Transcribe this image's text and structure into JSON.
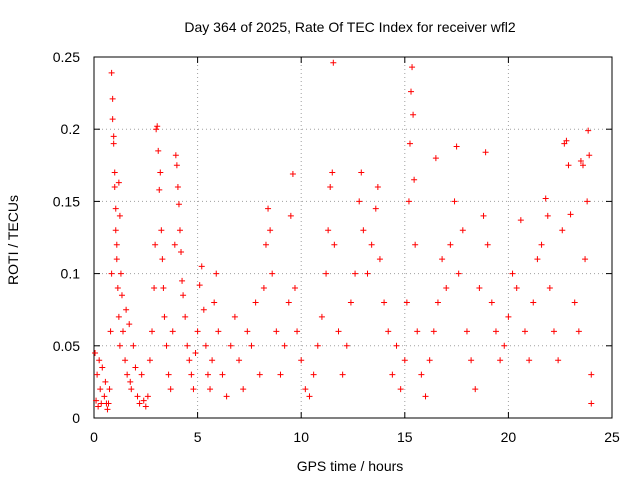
{
  "chart_data": {
    "type": "scatter",
    "title": "Day 364 of 2025, Rate Of TEC Index for receiver wfl2",
    "xlabel": "GPS time / hours",
    "ylabel": "ROTI / TECUs",
    "xlim": [
      0,
      25
    ],
    "ylim": [
      0,
      0.25
    ],
    "xticks": [
      0,
      5,
      10,
      15,
      20,
      25
    ],
    "xtick_labels": [
      "0",
      "5",
      "10",
      "15",
      "20",
      "25"
    ],
    "yticks": [
      0,
      0.05,
      0.1,
      0.15,
      0.2,
      0.25
    ],
    "ytick_labels": [
      "0",
      "0.05",
      "0.1",
      "0.15",
      "0.2",
      "0.25"
    ],
    "grid": true,
    "marker": "plus",
    "color": "#ff0000",
    "series": [
      {
        "name": "ROTI",
        "points": [
          [
            0.05,
            0.045
          ],
          [
            0.1,
            0.012
          ],
          [
            0.15,
            0.03
          ],
          [
            0.2,
            0.008
          ],
          [
            0.25,
            0.04
          ],
          [
            0.3,
            0.02
          ],
          [
            0.35,
            0.01
          ],
          [
            0.4,
            0.035
          ],
          [
            0.5,
            0.015
          ],
          [
            0.55,
            0.025
          ],
          [
            0.6,
            0.01
          ],
          [
            0.65,
            0.006
          ],
          [
            0.7,
            0.01
          ],
          [
            0.75,
            0.02
          ],
          [
            0.8,
            0.06
          ],
          [
            0.85,
            0.1
          ],
          [
            0.85,
            0.239
          ],
          [
            0.9,
            0.221
          ],
          [
            0.9,
            0.207
          ],
          [
            0.95,
            0.195
          ],
          [
            0.95,
            0.19
          ],
          [
            1.0,
            0.17
          ],
          [
            1.0,
            0.16
          ],
          [
            1.05,
            0.145
          ],
          [
            1.05,
            0.13
          ],
          [
            1.1,
            0.12
          ],
          [
            1.1,
            0.11
          ],
          [
            1.15,
            0.09
          ],
          [
            1.2,
            0.07
          ],
          [
            1.2,
            0.163
          ],
          [
            1.25,
            0.14
          ],
          [
            1.25,
            0.05
          ],
          [
            1.3,
            0.1
          ],
          [
            1.35,
            0.085
          ],
          [
            1.4,
            0.06
          ],
          [
            1.5,
            0.04
          ],
          [
            1.55,
            0.075
          ],
          [
            1.6,
            0.03
          ],
          [
            1.7,
            0.065
          ],
          [
            1.75,
            0.025
          ],
          [
            1.8,
            0.02
          ],
          [
            1.9,
            0.05
          ],
          [
            2.0,
            0.035
          ],
          [
            2.1,
            0.015
          ],
          [
            2.2,
            0.01
          ],
          [
            2.3,
            0.03
          ],
          [
            2.4,
            0.012
          ],
          [
            2.5,
            0.008
          ],
          [
            2.6,
            0.015
          ],
          [
            2.7,
            0.04
          ],
          [
            2.8,
            0.06
          ],
          [
            2.9,
            0.09
          ],
          [
            2.95,
            0.12
          ],
          [
            3.0,
            0.2
          ],
          [
            3.05,
            0.202
          ],
          [
            3.1,
            0.185
          ],
          [
            3.15,
            0.158
          ],
          [
            3.2,
            0.17
          ],
          [
            3.25,
            0.13
          ],
          [
            3.3,
            0.11
          ],
          [
            3.35,
            0.09
          ],
          [
            3.4,
            0.07
          ],
          [
            3.5,
            0.05
          ],
          [
            3.6,
            0.03
          ],
          [
            3.7,
            0.02
          ],
          [
            3.8,
            0.06
          ],
          [
            3.9,
            0.12
          ],
          [
            3.95,
            0.182
          ],
          [
            4.0,
            0.175
          ],
          [
            4.05,
            0.16
          ],
          [
            4.1,
            0.148
          ],
          [
            4.15,
            0.13
          ],
          [
            4.2,
            0.115
          ],
          [
            4.25,
            0.095
          ],
          [
            4.3,
            0.085
          ],
          [
            4.4,
            0.07
          ],
          [
            4.5,
            0.05
          ],
          [
            4.6,
            0.04
          ],
          [
            4.7,
            0.03
          ],
          [
            4.8,
            0.02
          ],
          [
            4.9,
            0.045
          ],
          [
            5.0,
            0.06
          ],
          [
            5.1,
            0.092
          ],
          [
            5.2,
            0.105
          ],
          [
            5.3,
            0.075
          ],
          [
            5.4,
            0.05
          ],
          [
            5.5,
            0.03
          ],
          [
            5.6,
            0.02
          ],
          [
            5.7,
            0.04
          ],
          [
            5.8,
            0.08
          ],
          [
            5.9,
            0.1
          ],
          [
            6.0,
            0.06
          ],
          [
            6.2,
            0.03
          ],
          [
            6.4,
            0.015
          ],
          [
            6.6,
            0.05
          ],
          [
            6.8,
            0.07
          ],
          [
            7.0,
            0.04
          ],
          [
            7.2,
            0.02
          ],
          [
            7.4,
            0.06
          ],
          [
            7.6,
            0.05
          ],
          [
            7.8,
            0.08
          ],
          [
            8.0,
            0.03
          ],
          [
            8.2,
            0.09
          ],
          [
            8.3,
            0.12
          ],
          [
            8.4,
            0.145
          ],
          [
            8.5,
            0.13
          ],
          [
            8.6,
            0.1
          ],
          [
            8.8,
            0.06
          ],
          [
            9.0,
            0.03
          ],
          [
            9.2,
            0.05
          ],
          [
            9.4,
            0.08
          ],
          [
            9.5,
            0.14
          ],
          [
            9.6,
            0.169
          ],
          [
            9.7,
            0.09
          ],
          [
            9.8,
            0.06
          ],
          [
            10.0,
            0.04
          ],
          [
            10.2,
            0.02
          ],
          [
            10.4,
            0.015
          ],
          [
            10.6,
            0.03
          ],
          [
            10.8,
            0.05
          ],
          [
            11.0,
            0.07
          ],
          [
            11.2,
            0.1
          ],
          [
            11.3,
            0.13
          ],
          [
            11.4,
            0.16
          ],
          [
            11.5,
            0.17
          ],
          [
            11.55,
            0.246
          ],
          [
            11.6,
            0.12
          ],
          [
            11.8,
            0.06
          ],
          [
            12.0,
            0.03
          ],
          [
            12.2,
            0.05
          ],
          [
            12.4,
            0.08
          ],
          [
            12.6,
            0.1
          ],
          [
            12.8,
            0.15
          ],
          [
            12.9,
            0.17
          ],
          [
            13.0,
            0.13
          ],
          [
            13.2,
            0.1
          ],
          [
            13.4,
            0.12
          ],
          [
            13.6,
            0.145
          ],
          [
            13.7,
            0.16
          ],
          [
            13.8,
            0.11
          ],
          [
            14.0,
            0.08
          ],
          [
            14.2,
            0.06
          ],
          [
            14.4,
            0.03
          ],
          [
            14.6,
            0.05
          ],
          [
            14.8,
            0.02
          ],
          [
            15.0,
            0.04
          ],
          [
            15.1,
            0.08
          ],
          [
            15.2,
            0.15
          ],
          [
            15.25,
            0.19
          ],
          [
            15.3,
            0.226
          ],
          [
            15.35,
            0.243
          ],
          [
            15.4,
            0.21
          ],
          [
            15.45,
            0.165
          ],
          [
            15.5,
            0.12
          ],
          [
            15.6,
            0.06
          ],
          [
            15.8,
            0.03
          ],
          [
            16.0,
            0.015
          ],
          [
            16.2,
            0.04
          ],
          [
            16.4,
            0.06
          ],
          [
            16.5,
            0.18
          ],
          [
            16.6,
            0.08
          ],
          [
            16.8,
            0.11
          ],
          [
            17.0,
            0.09
          ],
          [
            17.2,
            0.12
          ],
          [
            17.4,
            0.15
          ],
          [
            17.5,
            0.188
          ],
          [
            17.6,
            0.1
          ],
          [
            17.8,
            0.13
          ],
          [
            18.0,
            0.06
          ],
          [
            18.2,
            0.04
          ],
          [
            18.4,
            0.02
          ],
          [
            18.6,
            0.09
          ],
          [
            18.8,
            0.14
          ],
          [
            18.9,
            0.184
          ],
          [
            19.0,
            0.12
          ],
          [
            19.2,
            0.08
          ],
          [
            19.4,
            0.06
          ],
          [
            19.6,
            0.04
          ],
          [
            19.8,
            0.05
          ],
          [
            20.0,
            0.07
          ],
          [
            20.2,
            0.1
          ],
          [
            20.4,
            0.09
          ],
          [
            20.6,
            0.137
          ],
          [
            20.8,
            0.06
          ],
          [
            21.0,
            0.04
          ],
          [
            21.2,
            0.08
          ],
          [
            21.4,
            0.11
          ],
          [
            21.6,
            0.12
          ],
          [
            21.8,
            0.152
          ],
          [
            21.9,
            0.14
          ],
          [
            22.0,
            0.09
          ],
          [
            22.2,
            0.06
          ],
          [
            22.4,
            0.04
          ],
          [
            22.6,
            0.13
          ],
          [
            22.7,
            0.19
          ],
          [
            22.8,
            0.192
          ],
          [
            22.9,
            0.175
          ],
          [
            23.0,
            0.141
          ],
          [
            23.2,
            0.08
          ],
          [
            23.4,
            0.06
          ],
          [
            23.5,
            0.178
          ],
          [
            23.6,
            0.175
          ],
          [
            23.7,
            0.11
          ],
          [
            23.8,
            0.15
          ],
          [
            23.85,
            0.199
          ],
          [
            23.9,
            0.182
          ],
          [
            24.0,
            0.03
          ],
          [
            24.0,
            0.01
          ]
        ]
      }
    ]
  }
}
